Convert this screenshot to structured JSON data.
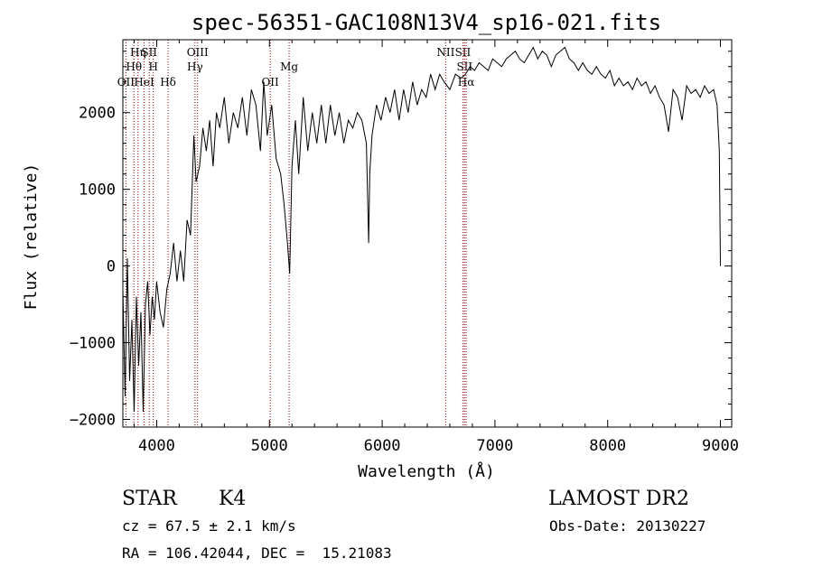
{
  "chart_data": {
    "type": "line",
    "title": "spec-56351-GAC108N13V4_sp16-021.fits",
    "xlabel": "Wavelength (Å)",
    "ylabel": "Flux (relative)",
    "xlim": [
      3700,
      9100
    ],
    "ylim": [
      -2100,
      2950
    ],
    "xticks": [
      4000,
      5000,
      6000,
      7000,
      8000,
      9000
    ],
    "yticks": [
      -2000,
      -1000,
      0,
      1000,
      2000
    ],
    "xtick_labels": [
      "4000",
      "5000",
      "6000",
      "7000",
      "8000",
      "9000"
    ],
    "ytick_labels": [
      "−2000",
      "−1000",
      "0",
      "1000",
      "2000"
    ],
    "line_color": "#000000",
    "marker_color": "#8b0000",
    "series": [
      {
        "values": [
          [
            3700,
            -300
          ],
          [
            3720,
            -1700
          ],
          [
            3740,
            100
          ],
          [
            3760,
            -1500
          ],
          [
            3780,
            -700
          ],
          [
            3800,
            -1900
          ],
          [
            3820,
            -400
          ],
          [
            3840,
            -1300
          ],
          [
            3860,
            -600
          ],
          [
            3880,
            -1900
          ],
          [
            3900,
            -500
          ],
          [
            3920,
            -200
          ],
          [
            3940,
            -900
          ],
          [
            3960,
            -400
          ],
          [
            3980,
            -700
          ],
          [
            4000,
            -200
          ],
          [
            4030,
            -600
          ],
          [
            4060,
            -800
          ],
          [
            4090,
            -300
          ],
          [
            4120,
            -100
          ],
          [
            4150,
            300
          ],
          [
            4180,
            -200
          ],
          [
            4210,
            200
          ],
          [
            4240,
            -200
          ],
          [
            4270,
            600
          ],
          [
            4300,
            400
          ],
          [
            4330,
            1700
          ],
          [
            4350,
            1100
          ],
          [
            4380,
            1300
          ],
          [
            4410,
            1800
          ],
          [
            4440,
            1500
          ],
          [
            4470,
            1900
          ],
          [
            4500,
            1300
          ],
          [
            4530,
            2000
          ],
          [
            4560,
            1800
          ],
          [
            4600,
            2200
          ],
          [
            4640,
            1600
          ],
          [
            4680,
            2000
          ],
          [
            4720,
            1800
          ],
          [
            4760,
            2200
          ],
          [
            4800,
            1700
          ],
          [
            4840,
            2300
          ],
          [
            4880,
            2100
          ],
          [
            4920,
            1500
          ],
          [
            4950,
            2400
          ],
          [
            4980,
            1700
          ],
          [
            5020,
            2100
          ],
          [
            5060,
            1400
          ],
          [
            5100,
            1200
          ],
          [
            5130,
            800
          ],
          [
            5160,
            300
          ],
          [
            5180,
            -100
          ],
          [
            5200,
            1300
          ],
          [
            5230,
            1900
          ],
          [
            5260,
            1200
          ],
          [
            5300,
            2200
          ],
          [
            5340,
            1500
          ],
          [
            5380,
            2000
          ],
          [
            5420,
            1600
          ],
          [
            5460,
            2100
          ],
          [
            5500,
            1600
          ],
          [
            5540,
            2100
          ],
          [
            5580,
            1700
          ],
          [
            5620,
            2000
          ],
          [
            5660,
            1600
          ],
          [
            5700,
            1900
          ],
          [
            5740,
            1800
          ],
          [
            5780,
            2000
          ],
          [
            5820,
            1900
          ],
          [
            5860,
            1600
          ],
          [
            5880,
            300
          ],
          [
            5890,
            1200
          ],
          [
            5910,
            1700
          ],
          [
            5950,
            2100
          ],
          [
            5990,
            1900
          ],
          [
            6030,
            2200
          ],
          [
            6070,
            2000
          ],
          [
            6110,
            2300
          ],
          [
            6150,
            1900
          ],
          [
            6190,
            2300
          ],
          [
            6230,
            2000
          ],
          [
            6270,
            2400
          ],
          [
            6310,
            2100
          ],
          [
            6350,
            2300
          ],
          [
            6390,
            2200
          ],
          [
            6430,
            2500
          ],
          [
            6470,
            2300
          ],
          [
            6510,
            2500
          ],
          [
            6550,
            2400
          ],
          [
            6600,
            2300
          ],
          [
            6650,
            2500
          ],
          [
            6700,
            2450
          ],
          [
            6740,
            2500
          ],
          [
            6780,
            2600
          ],
          [
            6820,
            2550
          ],
          [
            6860,
            2650
          ],
          [
            6900,
            2600
          ],
          [
            6940,
            2550
          ],
          [
            6980,
            2700
          ],
          [
            7020,
            2650
          ],
          [
            7060,
            2600
          ],
          [
            7100,
            2700
          ],
          [
            7140,
            2750
          ],
          [
            7180,
            2800
          ],
          [
            7220,
            2700
          ],
          [
            7260,
            2650
          ],
          [
            7300,
            2750
          ],
          [
            7340,
            2850
          ],
          [
            7380,
            2700
          ],
          [
            7420,
            2800
          ],
          [
            7460,
            2750
          ],
          [
            7500,
            2600
          ],
          [
            7540,
            2750
          ],
          [
            7580,
            2800
          ],
          [
            7620,
            2850
          ],
          [
            7660,
            2700
          ],
          [
            7700,
            2650
          ],
          [
            7740,
            2550
          ],
          [
            7780,
            2650
          ],
          [
            7820,
            2550
          ],
          [
            7860,
            2500
          ],
          [
            7900,
            2600
          ],
          [
            7940,
            2500
          ],
          [
            7980,
            2450
          ],
          [
            8020,
            2550
          ],
          [
            8060,
            2350
          ],
          [
            8100,
            2450
          ],
          [
            8140,
            2350
          ],
          [
            8180,
            2400
          ],
          [
            8220,
            2300
          ],
          [
            8260,
            2450
          ],
          [
            8300,
            2350
          ],
          [
            8340,
            2400
          ],
          [
            8380,
            2250
          ],
          [
            8420,
            2350
          ],
          [
            8460,
            2200
          ],
          [
            8500,
            2100
          ],
          [
            8540,
            1750
          ],
          [
            8580,
            2300
          ],
          [
            8620,
            2200
          ],
          [
            8660,
            1900
          ],
          [
            8700,
            2350
          ],
          [
            8740,
            2250
          ],
          [
            8780,
            2300
          ],
          [
            8820,
            2200
          ],
          [
            8860,
            2350
          ],
          [
            8900,
            2250
          ],
          [
            8940,
            2300
          ],
          [
            8970,
            2100
          ],
          [
            8990,
            1500
          ],
          [
            9000,
            0
          ]
        ]
      }
    ],
    "line_markers": [
      {
        "x": 3727,
        "name": "OII",
        "row": 3
      },
      {
        "x": 3798,
        "name": "Hθ",
        "row": 2
      },
      {
        "x": 3835,
        "name": "Hη",
        "row": 1
      },
      {
        "x": 3889,
        "name": "HeI",
        "row": 3
      },
      {
        "x": 3934,
        "name": "SII",
        "row": 1
      },
      {
        "x": 3970,
        "name": "H",
        "row": 2
      },
      {
        "x": 4101,
        "name": "Hδ",
        "row": 3
      },
      {
        "x": 4340,
        "name": "Hγ",
        "row": 2
      },
      {
        "x": 4363,
        "name": "OIII",
        "row": 1
      },
      {
        "x": 5007,
        "name": "OII",
        "row": 3
      },
      {
        "x": 5175,
        "name": "Mg",
        "row": 2
      },
      {
        "x": 6563,
        "name": "NII",
        "row": 1
      },
      {
        "x": 6716,
        "name": "SII",
        "row": 1
      },
      {
        "x": 6731,
        "name": "SII",
        "row": 2
      },
      {
        "x": 6745,
        "name": "Hα",
        "row": 3
      }
    ]
  },
  "info": {
    "object_type": "STAR",
    "subclass": "K4",
    "survey": "LAMOST DR2",
    "cz": "cz = 67.5 ± 2.1 km/s",
    "obs_date": "Obs-Date: 20130227",
    "coords": "RA = 106.42044, DEC =  15.21083"
  }
}
